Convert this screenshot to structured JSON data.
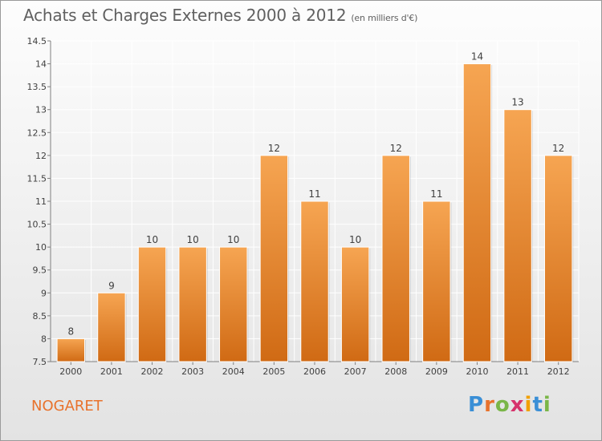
{
  "header": {
    "title": "Achats et Charges Externes 2000 à 2012",
    "subtitle": "(en milliers d'€)"
  },
  "commune": "NOGARET",
  "logo": {
    "text": "Proxiti",
    "letters": [
      {
        "ch": "P",
        "color": "#3a8fd6"
      },
      {
        "ch": "r",
        "color": "#e8722c"
      },
      {
        "ch": "o",
        "color": "#7ab648"
      },
      {
        "ch": "x",
        "color": "#d6336c"
      },
      {
        "ch": "i",
        "color": "#f2a100"
      },
      {
        "ch": "t",
        "color": "#3a8fd6"
      },
      {
        "ch": "i",
        "color": "#7ab648"
      }
    ]
  },
  "chart_data": {
    "type": "bar",
    "title": "Achats et Charges Externes 2000 à 2012",
    "subtitle": "(en milliers d'€)",
    "categories": [
      "2000",
      "2001",
      "2002",
      "2003",
      "2004",
      "2005",
      "2006",
      "2007",
      "2008",
      "2009",
      "2010",
      "2011",
      "2012"
    ],
    "values": [
      8,
      9,
      10,
      10,
      10,
      12,
      11,
      10,
      12,
      11,
      14,
      13,
      12
    ],
    "value_labels": [
      "8",
      "9",
      "10",
      "10",
      "10",
      "12",
      "11",
      "10",
      "12",
      "11",
      "14",
      "13",
      "12"
    ],
    "ylim": [
      7.5,
      14.5
    ],
    "yticks": [
      7.5,
      8,
      8.5,
      9,
      9.5,
      10,
      10.5,
      11,
      11.5,
      12,
      12.5,
      13,
      13.5,
      14,
      14.5
    ],
    "ytick_labels": [
      "7.5",
      "8",
      "8.5",
      "9",
      "9.5",
      "10",
      "10.5",
      "11",
      "11.5",
      "12",
      "12.5",
      "13",
      "13.5",
      "14",
      "14.5"
    ],
    "grid": true,
    "colors": {
      "bar_light": "#f6a552",
      "bar_dark": "#d06a14",
      "grid": "#ffffff",
      "axis": "#808080"
    }
  }
}
